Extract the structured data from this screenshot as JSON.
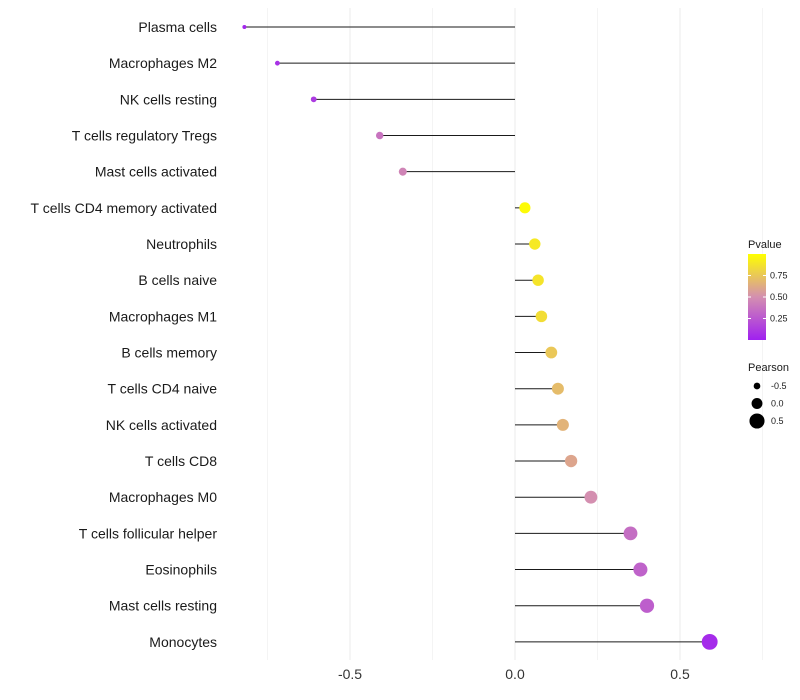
{
  "chart_data": {
    "type": "lollipop",
    "title": "",
    "xlabel": "",
    "ylabel": "",
    "xlim": [
      -0.82,
      0.82
    ],
    "x_ticks": [
      -0.5,
      0.0,
      0.5
    ],
    "x_tick_labels": [
      "-0.5",
      "0.0",
      "0.5"
    ],
    "grid": true,
    "categories": [
      "Plasma cells",
      "Macrophages M2",
      "NK cells resting",
      "T cells regulatory  Tregs",
      "Mast cells activated",
      "T cells CD4 memory activated",
      "Neutrophils",
      "B cells naive",
      "Macrophages M1",
      "B cells memory",
      "T cells CD4 naive",
      "NK cells activated",
      "T cells CD8",
      "Macrophages M0",
      "T cells follicular helper",
      "Eosinophils",
      "Mast cells resting",
      "Monocytes"
    ],
    "pearson": [
      -0.82,
      -0.72,
      -0.61,
      -0.41,
      -0.34,
      0.03,
      0.06,
      0.07,
      0.08,
      0.11,
      0.13,
      0.145,
      0.17,
      0.23,
      0.35,
      0.38,
      0.4,
      0.59
    ],
    "pvalue": [
      0.03,
      0.08,
      0.12,
      0.38,
      0.45,
      0.98,
      0.9,
      0.88,
      0.85,
      0.75,
      0.7,
      0.66,
      0.6,
      0.5,
      0.35,
      0.3,
      0.28,
      0.05
    ],
    "legend_pvalue": {
      "title": "Pvalue",
      "ticks": [
        0.75,
        0.5,
        0.25
      ],
      "tick_labels": [
        "0.75",
        "0.50",
        "0.25"
      ],
      "range": [
        0.0,
        1.0
      ],
      "color_low": "#a020f0",
      "color_mid": "#d48fb0",
      "color_high": "#ffff00"
    },
    "legend_pearson": {
      "title": "Pearson",
      "values": [
        -0.5,
        0.0,
        0.5
      ],
      "labels": [
        "-0.5",
        "0.0",
        "0.5"
      ]
    },
    "legend_position": "right"
  }
}
